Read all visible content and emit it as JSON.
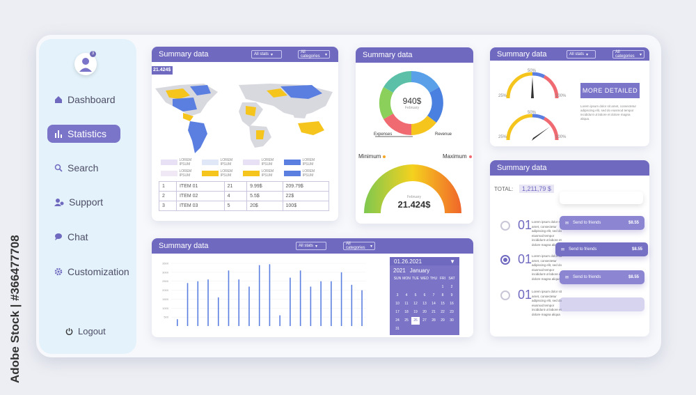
{
  "watermark": "Adobe Stock | #366477708",
  "sidebar": {
    "avatar_badge": "3",
    "items": [
      {
        "label": "Dashboard",
        "icon": "home-icon"
      },
      {
        "label": "Statistics",
        "icon": "bar-chart-icon",
        "active": true
      },
      {
        "label": "Search",
        "icon": "search-icon"
      },
      {
        "label": "Support",
        "icon": "support-icon"
      },
      {
        "label": "Chat",
        "icon": "chat-icon"
      },
      {
        "label": "Customization",
        "icon": "gear-icon"
      }
    ],
    "logout": "Logout"
  },
  "map_card": {
    "title": "Summary data",
    "filter1": "All stats",
    "filter2": "All categories",
    "stat_value": "21.424$",
    "legend_text": "LOREM IPSUM",
    "table": [
      [
        "1",
        "ITEM 01",
        "21",
        "9.99$",
        "209.79$"
      ],
      [
        "2",
        "ITEM 02",
        "4",
        "5.5$",
        "22$"
      ],
      [
        "3",
        "ITEM 03",
        "5",
        "20$",
        "100$"
      ]
    ]
  },
  "donut_card": {
    "title": "Summary data",
    "center_value": "940$",
    "center_label": "February",
    "expenses": "Expenses",
    "revenue": "Revenue",
    "minimum": "Minimum",
    "maximum": "Maximum",
    "gauge_label": "February",
    "gauge_value": "21.424$"
  },
  "gauge_card": {
    "title": "Summary data",
    "filter1": "All stats",
    "filter2": "All categories",
    "pct50": "50%",
    "pct25": "25%",
    "pct100": "100%",
    "button": "MORE DETAILED",
    "lorem": "Lorem ipsum dolor sit amet, consectetur adipiscing elit, sed do eiusmod tempor incididunt ut labore et dolore magna aliqua."
  },
  "bar_card": {
    "title": "Summary data",
    "filter1": "All stats",
    "filter2": "All categories",
    "calendar": {
      "date": "01.26.2021",
      "year": "2021",
      "month": "January",
      "weekdays": [
        "SUN",
        "MON",
        "TUE",
        "WED",
        "THU",
        "FRI",
        "SAT"
      ],
      "days": [
        "",
        "",
        "",
        "",
        "",
        "1",
        "2",
        "3",
        "4",
        "5",
        "6",
        "7",
        "8",
        "9",
        "10",
        "11",
        "12",
        "13",
        "14",
        "15",
        "16",
        "17",
        "18",
        "19",
        "20",
        "21",
        "22",
        "23",
        "24",
        "25",
        "26",
        "27",
        "28",
        "29",
        "30",
        "31",
        ""
      ],
      "selected": "26"
    }
  },
  "chart_data": {
    "type": "bar",
    "title": "Summary data",
    "xlabel": "",
    "ylabel": "",
    "y_ticks": [
      "3500",
      "3000",
      "2500",
      "2000",
      "1500",
      "1000",
      "500"
    ],
    "ylim": [
      0,
      3500
    ],
    "values": [
      380,
      2400,
      2500,
      2600,
      1600,
      3100,
      2600,
      2200,
      3400,
      3450,
      600,
      2700,
      3100,
      2200,
      2500,
      2500,
      3000,
      2300,
      2000
    ]
  },
  "send_card": {
    "title": "Summary data",
    "total_label": "TOTAL:",
    "total_value": "1,211,79 $",
    "rows": [
      {
        "num": "01",
        "button": "Send to friends",
        "price": "$8.55",
        "selected": false
      },
      {
        "num": "01",
        "button": "Send to friends",
        "price": "$8.55",
        "selected": true
      },
      {
        "num": "01",
        "button": "Send to friends",
        "price": "$8.55",
        "selected": false
      }
    ],
    "row_text": "Lorem ipsum dolor sit amet, consectetur adipiscing elit, sed do eiusmod tempor incididunt ut labore et dolore magna aliqua"
  },
  "colors": {
    "accent": "#6f69bf",
    "sidebar": "#e4f3fb",
    "yellow": "#f5c51e",
    "blue": "#5b7fe0"
  }
}
